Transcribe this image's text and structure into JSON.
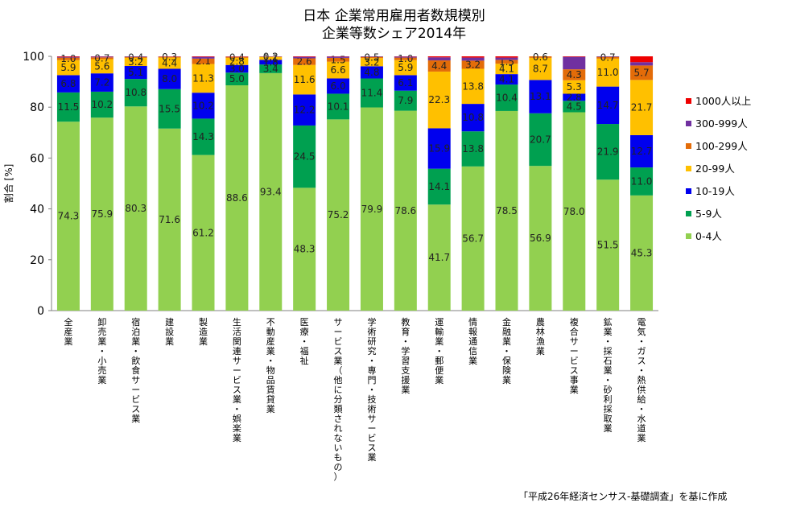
{
  "chart_data": {
    "type": "bar",
    "stacked": true,
    "title": "日本 企業常用雇用者数規模別",
    "subtitle": "企業等数シェア2014年",
    "ylabel": "割合 [%]",
    "ylim": [
      0,
      100
    ],
    "yticks": [
      0,
      20,
      40,
      60,
      80,
      100
    ],
    "legend_position": "right",
    "source_note": "「平成26年経済センサス-基礎調査」を基に作成",
    "categories": [
      "全産業",
      "卸売業・小売業",
      "宿泊業・飲食サービス業",
      "建設業",
      "製造業",
      "生活関連サービス業・娯楽業",
      "不動産業・物品賃貸業",
      "医療・福祉",
      "サービス業（他に分類されないもの）",
      "学術研究・専門・技術サービス業",
      "教育・学習支援業",
      "運輸業・郵便業",
      "情報通信業",
      "金融業・保険業",
      "農林漁業",
      "複合サービス事業",
      "鉱業・採石業・砂利採取業",
      "電気・ガス・熱供給・水道業"
    ],
    "series": [
      {
        "name": "0-4人",
        "color": "#92d050",
        "values": [
          74.3,
          75.9,
          80.3,
          71.6,
          61.2,
          88.6,
          93.4,
          48.3,
          75.2,
          79.9,
          78.6,
          41.7,
          56.7,
          78.5,
          56.9,
          78.0,
          51.5,
          45.3
        ],
        "labels": [
          "74.3",
          "75.9",
          "80.3",
          "71.6",
          "61.2",
          "88.6",
          "93.4",
          "48.3",
          "75.2",
          "79.9",
          "78.6",
          "41.7",
          "56.7",
          "78.5",
          "56.9",
          "78.0",
          "51.5",
          "45.3"
        ]
      },
      {
        "name": "5-9人",
        "color": "#00a050",
        "values": [
          11.5,
          10.2,
          10.8,
          15.5,
          14.3,
          5.0,
          3.4,
          24.5,
          10.1,
          11.4,
          7.9,
          14.1,
          13.8,
          10.4,
          20.7,
          4.5,
          21.9,
          11.0
        ],
        "labels": [
          "11.5",
          "10.2",
          "10.8",
          "15.5",
          "14.3",
          "5.0",
          "3.4",
          "24.5",
          "10.1",
          "11.4",
          "7.9",
          "14.1",
          "13.8",
          "10.4",
          "20.7",
          "4.5",
          "21.9",
          "11.0"
        ]
      },
      {
        "name": "10-19人",
        "color": "#0000ee",
        "values": [
          6.8,
          7.2,
          5.1,
          8.0,
          10.2,
          3.0,
          1.8,
          12.2,
          6.0,
          4.8,
          6.1,
          15.9,
          10.8,
          4.1,
          13.1,
          2.8,
          14.7,
          12.7
        ],
        "labels": [
          "6.8",
          "7.2",
          "5.1",
          "8.0",
          "10.2",
          "3.0",
          "1.8",
          "12.2",
          "6.0",
          "4.8",
          "6.1",
          "15.9",
          "10.8",
          "4.1",
          "13.1",
          "2.8",
          "14.7",
          "12.7"
        ]
      },
      {
        "name": "20-99人",
        "color": "#ffc000",
        "values": [
          5.9,
          5.6,
          3.2,
          4.4,
          11.3,
          2.8,
          1.1,
          11.6,
          6.6,
          3.2,
          5.9,
          22.3,
          13.8,
          4.1,
          8.7,
          5.3,
          11.0,
          21.7
        ],
        "labels": [
          "5.9",
          "5.6",
          "3.2",
          "4.4",
          "11.3",
          "2.8",
          "1.1",
          "11.6",
          "6.6",
          "3.2",
          "5.9",
          "22.3",
          "13.8",
          "4.1",
          "8.7",
          "5.3",
          "11.0",
          "21.7"
        ]
      },
      {
        "name": "100-299人",
        "color": "#e36c09",
        "values": [
          1.0,
          0.7,
          0.4,
          0.3,
          2.1,
          0.4,
          0.2,
          2.6,
          1.5,
          0.5,
          1.0,
          4.4,
          3.2,
          1.5,
          0.6,
          4.3,
          0.7,
          5.7
        ],
        "labels": [
          "1.0",
          "0.7",
          "0.4",
          "0.3",
          "2.1",
          "0.4",
          "0.2",
          "2.6",
          "1.5",
          "0.5",
          "1.0",
          "4.4",
          "3.2",
          "1.5",
          "0.6",
          "4.3",
          "0.7",
          "5.7"
        ]
      },
      {
        "name": "300-999人",
        "color": "#7030a0",
        "values": [
          0.3,
          0.3,
          0.2,
          0.1,
          0.7,
          0.1,
          0.1,
          0.6,
          0.5,
          0.2,
          0.4,
          1.2,
          1.2,
          0.9,
          0.0,
          4.9,
          0.2,
          1.3
        ],
        "labels": []
      },
      {
        "name": "1000人以上",
        "color": "#ee0000",
        "values": [
          0.2,
          0.1,
          0.0,
          0.1,
          0.2,
          0.1,
          0.0,
          0.2,
          0.1,
          0.0,
          0.1,
          0.4,
          0.5,
          0.5,
          0.0,
          0.2,
          0.0,
          2.3
        ],
        "labels": []
      }
    ]
  }
}
